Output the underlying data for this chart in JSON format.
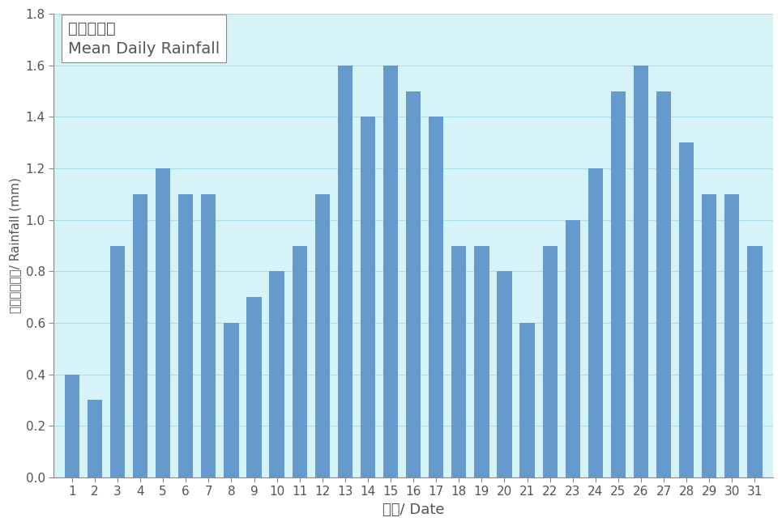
{
  "days": [
    1,
    2,
    3,
    4,
    5,
    6,
    7,
    8,
    9,
    10,
    11,
    12,
    13,
    14,
    15,
    16,
    17,
    18,
    19,
    20,
    21,
    22,
    23,
    24,
    25,
    26,
    27,
    28,
    29,
    30,
    31
  ],
  "values": [
    0.4,
    0.3,
    0.9,
    1.1,
    1.2,
    1.1,
    1.1,
    0.6,
    0.7,
    0.8,
    0.9,
    1.1,
    1.6,
    1.4,
    1.6,
    1.5,
    1.4,
    0.9,
    0.9,
    0.8,
    0.6,
    0.9,
    1.0,
    1.2,
    1.5,
    1.6,
    1.5,
    1.3,
    1.1,
    1.1,
    0.9
  ],
  "bar_color": "#6699CC",
  "plot_bg_color": "#D6F3F8",
  "outer_bg_color": "#FFFFFF",
  "xlabel": "日期/ Date",
  "ylabel": "雨量（毫米）/ Rainfall (mm)",
  "legend_line1": "平均日雨量",
  "legend_line2": "Mean Daily Rainfall",
  "ylim": [
    0.0,
    1.8
  ],
  "yticks": [
    0.0,
    0.2,
    0.4,
    0.6,
    0.8,
    1.0,
    1.2,
    1.4,
    1.6,
    1.8
  ],
  "xlabel_fontsize": 13,
  "ylabel_fontsize": 11,
  "tick_fontsize": 11,
  "legend_fontsize1": 14,
  "legend_fontsize2": 13,
  "grid_color": "#AADDEE",
  "spine_color": "#888888",
  "text_color": "#555555"
}
